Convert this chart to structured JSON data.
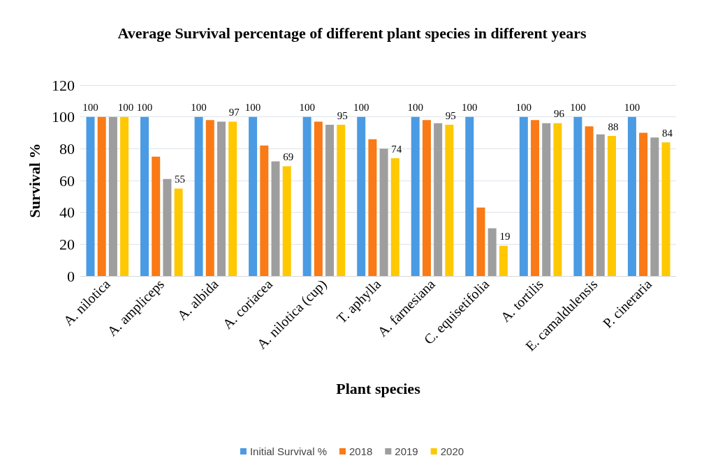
{
  "chart_data": {
    "type": "bar",
    "title": "Average Survival percentage of different plant species in different years",
    "xlabel": "Plant species",
    "ylabel": "Survival %",
    "categories": [
      "A. nilotica",
      "A. ampliceps",
      "A. albida",
      "A. coriacea",
      "A. nilotica (cup)",
      "T. aphylla",
      "A. farnesiana",
      "C. equisetifolia",
      "A. tortilis",
      "E. camaldulensis",
      "P. cineraria"
    ],
    "series": [
      {
        "name": "Initial Survival %",
        "color": "#4a9be3",
        "values": [
          100,
          100,
          100,
          100,
          100,
          100,
          100,
          100,
          100,
          100,
          100
        ],
        "value_labels": [
          "100",
          "100",
          "100",
          "100",
          "100",
          "100",
          "100",
          "100",
          "100",
          "100",
          "100"
        ]
      },
      {
        "name": "2018",
        "color": "#f97a16",
        "values": [
          100,
          75,
          98,
          82,
          97,
          86,
          98,
          43,
          98,
          94,
          90
        ]
      },
      {
        "name": "2019",
        "color": "#9e9e9e",
        "values": [
          100,
          61,
          97,
          72,
          95,
          80,
          96,
          30,
          96,
          89,
          87
        ]
      },
      {
        "name": "2020",
        "color": "#ffc800",
        "values": [
          100,
          55,
          97,
          69,
          95,
          74,
          95,
          19,
          96,
          88,
          84
        ],
        "value_labels": [
          "100",
          "55",
          "97",
          "69",
          "95",
          "74",
          "95",
          "19",
          "96",
          "88",
          "84"
        ]
      }
    ],
    "ylim": [
      0,
      120
    ],
    "yticks": [
      0,
      20,
      40,
      60,
      80,
      100,
      120
    ],
    "grid": "y",
    "legend": "bottom"
  }
}
